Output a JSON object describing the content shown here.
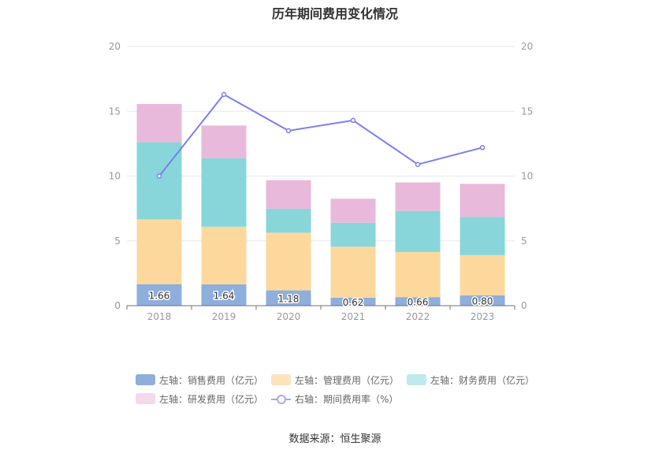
{
  "chart_data": {
    "type": "bar",
    "title": "历年期间费用变化情况",
    "categories": [
      "2018",
      "2019",
      "2020",
      "2021",
      "2022",
      "2023"
    ],
    "ylim": [
      0,
      20
    ],
    "yticks": [
      0,
      5,
      10,
      15,
      20
    ],
    "y2lim": [
      0,
      20
    ],
    "y2ticks": [
      0,
      5,
      10,
      15,
      20
    ],
    "stacked": true,
    "series": [
      {
        "name": "左轴：销售费用（亿元）",
        "axis": "left",
        "type": "bar",
        "color": "#8eaedb",
        "values": [
          1.66,
          1.64,
          1.18,
          0.62,
          0.66,
          0.8
        ],
        "labels": [
          "1.66",
          "1.64",
          "1.18",
          "0.62",
          "0.66",
          "0.80"
        ]
      },
      {
        "name": "左轴：管理费用（亿元）",
        "axis": "left",
        "type": "bar",
        "color": "#fdd89d",
        "values": [
          5.0,
          4.45,
          4.45,
          3.93,
          3.48,
          3.1
        ]
      },
      {
        "name": "左轴：财务费用（亿元）",
        "axis": "left",
        "type": "bar",
        "color": "#88d6d9",
        "values": [
          5.95,
          5.28,
          1.85,
          1.85,
          3.17,
          2.95
        ]
      },
      {
        "name": "左轴：研发费用（亿元）",
        "axis": "left",
        "type": "bar",
        "color": "#e8b9da",
        "values": [
          2.95,
          2.53,
          2.2,
          1.85,
          2.2,
          2.55
        ]
      },
      {
        "name": "右轴：期间费用率（%）",
        "axis": "right",
        "type": "line",
        "color": "#7b7ff0",
        "values": [
          10.0,
          16.3,
          13.5,
          14.3,
          10.9,
          12.2
        ]
      }
    ],
    "legend_position": "bottom",
    "grid": true
  },
  "legend": [
    {
      "label": "左轴：销售费用（亿元）",
      "color": "#8eaedb",
      "kind": "bar"
    },
    {
      "label": "左轴：管理费用（亿元）",
      "color": "#fde3bb",
      "kind": "bar"
    },
    {
      "label": "左轴：财务费用（亿元）",
      "color": "#bfe9ea",
      "kind": "bar"
    },
    {
      "label": "左轴：研发费用（亿元）",
      "color": "#f3d9ea",
      "kind": "bar"
    },
    {
      "label": "右轴：期间费用率（%）",
      "color": "#a5a9f5",
      "kind": "line"
    }
  ],
  "source": "数据来源：恒生聚源"
}
